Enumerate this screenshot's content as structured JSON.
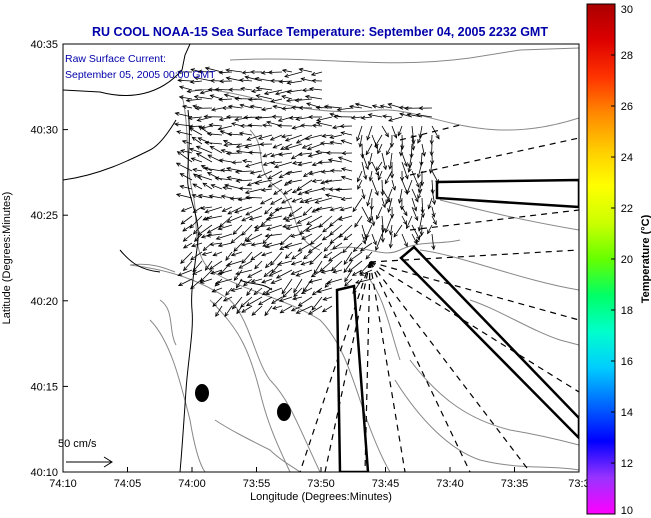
{
  "title": "RU COOL  NOAA-15  Sea Surface Temperature:  September 04, 2005 2232 GMT",
  "current_note": {
    "line1": "Raw Surface Current:",
    "line2": "September 05, 2005 00:00 GMT"
  },
  "scale_label": "50 cm/s",
  "x_axis": {
    "label": "Longitude (Degrees:Minutes)",
    "ticks": [
      "74:10",
      "74:05",
      "74:00",
      "73:55",
      "73:50",
      "73:45",
      "73:40",
      "73:35",
      "73:3"
    ]
  },
  "y_axis": {
    "label": "Latitude (Degrees:Minutes)",
    "ticks": [
      "40:35",
      "40:30",
      "40:25",
      "40:20",
      "40:15",
      "40:10"
    ]
  },
  "colorbar": {
    "label": "Temperature (°C)",
    "ticks": [
      "30",
      "28",
      "26",
      "24",
      "22",
      "20",
      "18",
      "16",
      "14",
      "12",
      "10"
    ],
    "range": [
      10,
      30
    ],
    "colors": [
      "#ff00ff",
      "#9933ff",
      "#0000ff",
      "#0066ff",
      "#00ccff",
      "#00ffcc",
      "#00ff66",
      "#66ff00",
      "#ccff00",
      "#ffff00",
      "#ffcc00",
      "#ff8800",
      "#ff3300",
      "#dd0000",
      "#aa0000"
    ]
  },
  "colors": {
    "title": "#0000aa",
    "contour": "#888888",
    "coast": "#000000",
    "vectors": "#000000"
  }
}
